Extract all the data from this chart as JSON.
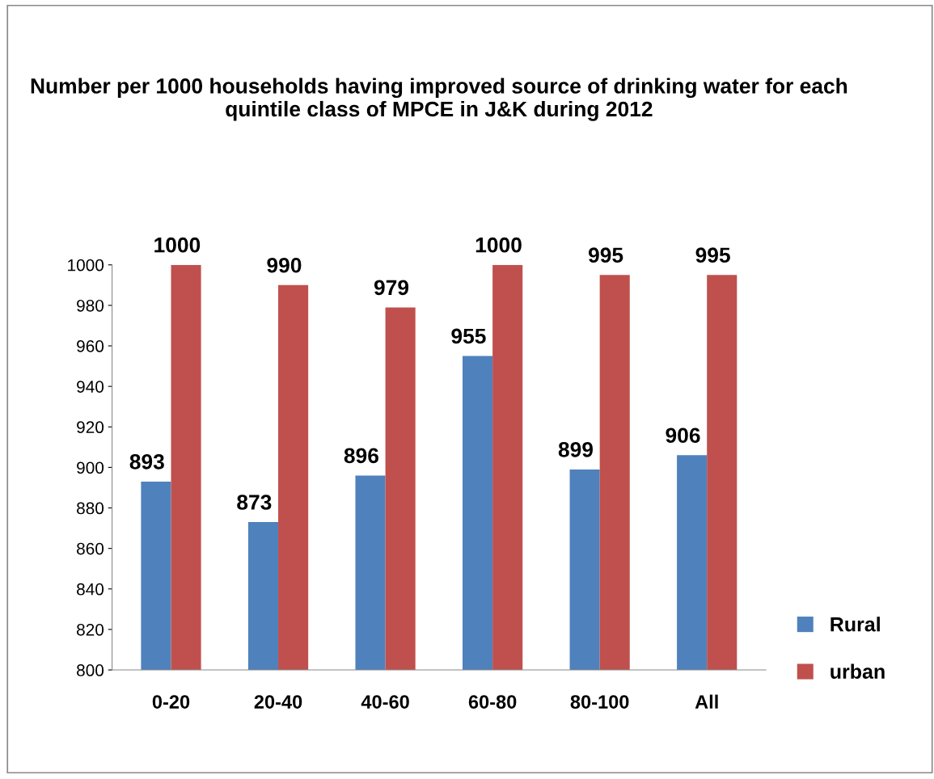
{
  "chart_data": {
    "type": "bar",
    "title": "Number per 1000 households having improved source of drinking water for each quintile class of MPCE in J&K during 2012",
    "categories": [
      "0-20",
      "20-40",
      "40-60",
      "60-80",
      "80-100",
      "All"
    ],
    "series": [
      {
        "name": "Rural",
        "color": "#4f81bd",
        "values": [
          893,
          873,
          896,
          955,
          899,
          906
        ]
      },
      {
        "name": "urban",
        "color": "#c0504d",
        "values": [
          1000,
          990,
          979,
          1000,
          995,
          995
        ]
      }
    ],
    "ylim": [
      800,
      1000
    ],
    "yticks": [
      800,
      820,
      840,
      860,
      880,
      900,
      920,
      940,
      960,
      980,
      1000
    ],
    "data_labels": true,
    "legend": "right",
    "grid": false
  }
}
